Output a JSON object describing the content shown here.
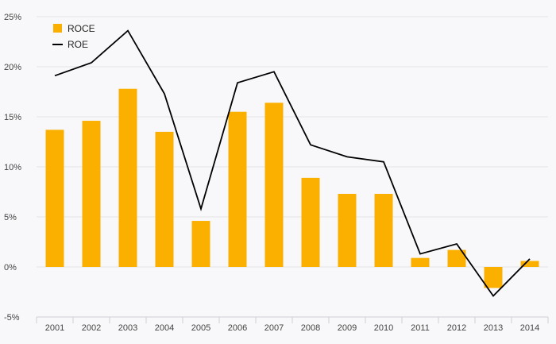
{
  "chart_data": {
    "type": "bar+line",
    "categories": [
      "2001",
      "2002",
      "2003",
      "2004",
      "2005",
      "2006",
      "2007",
      "2008",
      "2009",
      "2010",
      "2011",
      "2012",
      "2013",
      "2014"
    ],
    "series": [
      {
        "name": "ROCE",
        "kind": "bar",
        "color": "#fbb000",
        "values": [
          13.7,
          14.6,
          17.8,
          13.5,
          4.6,
          15.5,
          16.4,
          8.9,
          7.3,
          7.3,
          0.9,
          1.7,
          -2.1,
          0.6
        ]
      },
      {
        "name": "ROE",
        "kind": "line",
        "color": "#000000",
        "values": [
          19.1,
          20.4,
          23.6,
          17.3,
          5.8,
          18.4,
          19.5,
          12.2,
          11.0,
          10.5,
          1.3,
          2.3,
          -2.9,
          0.8
        ]
      }
    ],
    "ylim": [
      -5,
      25
    ],
    "yticks": [
      "25%",
      "20%",
      "15%",
      "10%",
      "5%",
      "0%",
      "-5%"
    ],
    "ytick_values": [
      25,
      20,
      15,
      10,
      5,
      0,
      -5
    ],
    "grid": true,
    "legend_position": "top-left"
  }
}
